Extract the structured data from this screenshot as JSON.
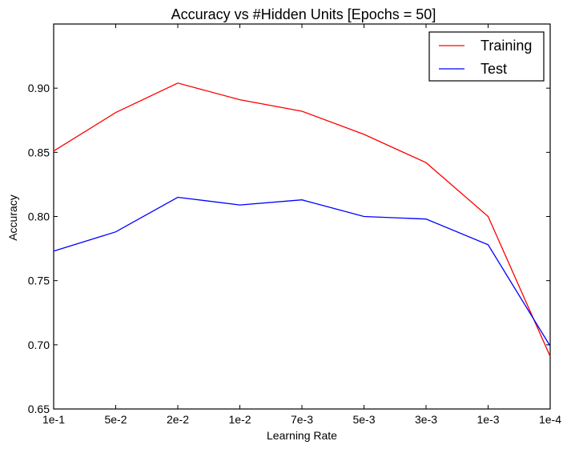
{
  "chart_data": {
    "type": "line",
    "title": "Accuracy vs #Hidden Units [Epochs = 50]",
    "xlabel": "Learning Rate",
    "ylabel": "Accuracy",
    "categories": [
      "1e-1",
      "5e-2",
      "2e-2",
      "1e-2",
      "7e-3",
      "5e-3",
      "3e-3",
      "1e-3",
      "1e-4"
    ],
    "ylim": [
      0.65,
      0.95
    ],
    "yticks": [
      0.65,
      0.7,
      0.75,
      0.8,
      0.85,
      0.9
    ],
    "ytick_labels": [
      "0.65",
      "0.70",
      "0.75",
      "0.80",
      "0.85",
      "0.90"
    ],
    "grid": false,
    "legend_position": "top-right",
    "series": [
      {
        "name": "Training",
        "color": "#ff0000",
        "values": [
          0.851,
          0.881,
          0.904,
          0.891,
          0.882,
          0.864,
          0.842,
          0.8,
          0.691
        ]
      },
      {
        "name": "Test",
        "color": "#0000ff",
        "values": [
          0.773,
          0.788,
          0.815,
          0.809,
          0.813,
          0.8,
          0.798,
          0.778,
          0.699
        ]
      }
    ]
  }
}
